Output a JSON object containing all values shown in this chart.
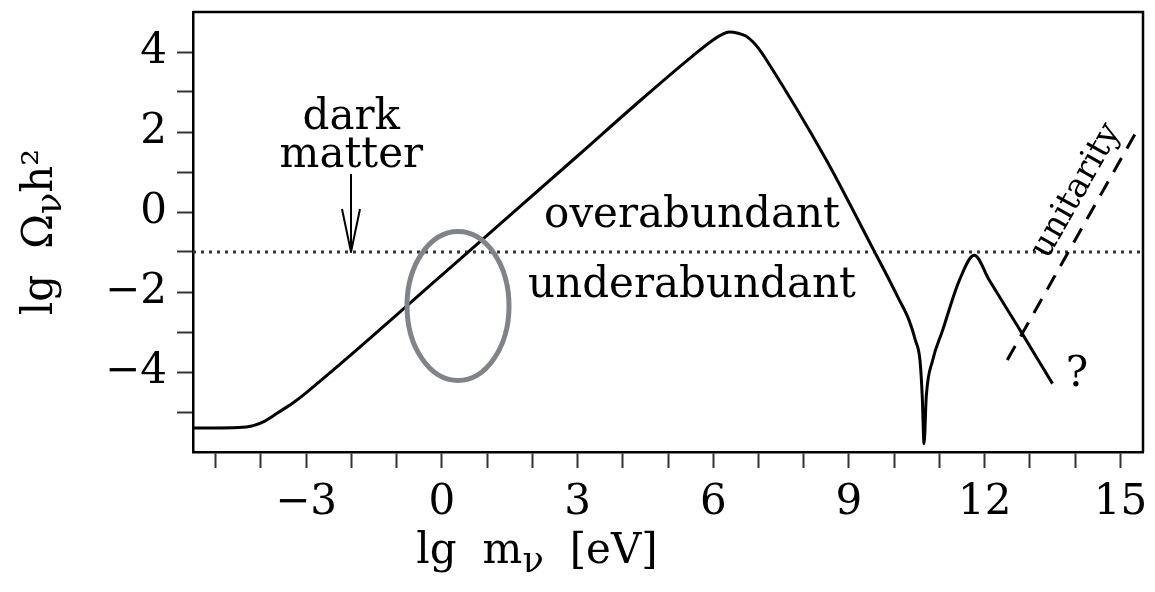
{
  "chart_data": {
    "type": "line",
    "xlabel": "lg m$_{ν}$ [eV]",
    "ylabel": "lg Ω$_{ν}$h²",
    "xlim": [
      -5.5,
      15.5
    ],
    "xticks": [
      {
        "value": -5,
        "label": null
      },
      {
        "value": -4,
        "label": null
      },
      -3,
      {
        "value": -2,
        "label": null
      },
      {
        "value": -1,
        "label": null
      },
      0,
      {
        "value": 1,
        "label": null
      },
      {
        "value": 2,
        "label": null
      },
      3,
      {
        "value": 4,
        "label": null
      },
      {
        "value": 5,
        "label": null
      },
      6,
      {
        "value": 7,
        "label": null
      },
      {
        "value": 8,
        "label": null
      },
      9,
      {
        "value": 10,
        "label": null
      },
      {
        "value": 11,
        "label": null
      },
      12,
      {
        "value": 13,
        "label": null
      },
      {
        "value": 14,
        "label": null
      },
      15
    ],
    "ylim": [
      -6,
      5
    ],
    "yticks": [
      {
        "value": -5,
        "label": null
      },
      -4,
      {
        "value": -3,
        "label": null
      },
      -2,
      {
        "value": -1,
        "label": null
      },
      0,
      {
        "value": 1,
        "label": null
      },
      2,
      {
        "value": 3,
        "label": null
      },
      4
    ],
    "series": [
      {
        "color": "#000000",
        "x": [
          -5.5,
          -5.0,
          -4.5,
          -4.2,
          -3.9,
          -3.6,
          -3.3,
          -3.0,
          0,
          3,
          4.4,
          5.5,
          5.98,
          6.2,
          6.35,
          6.55,
          6.72,
          6.88,
          7.01,
          7.16,
          8.5,
          9.55,
          9.8,
          10.1,
          10.33,
          10.47,
          10.57,
          10.62,
          10.66,
          10.71,
          10.85,
          11.07,
          11.44,
          11.77,
          12.1,
          12.83,
          13.5
        ],
        "values": [
          -5.4,
          -5.4,
          -5.39,
          -5.35,
          -5.22,
          -5.0,
          -4.78,
          -4.52,
          -1.58,
          1.4,
          2.8,
          3.86,
          4.29,
          4.44,
          4.5,
          4.47,
          4.4,
          4.25,
          4.08,
          3.83,
          1.3,
          -0.96,
          -1.5,
          -2.17,
          -2.71,
          -3.21,
          -3.71,
          -4.6,
          -5.79,
          -4.6,
          -3.71,
          -2.96,
          -1.71,
          -1.08,
          -1.7,
          -3.04,
          -4.29
        ]
      },
      {
        "name": "unitarity",
        "color": "#000000",
        "line_style": "dashed",
        "x": [
          12.5,
          15.4
        ],
        "values": [
          -3.7,
          2.1
        ]
      }
    ],
    "ref_lines": [
      {
        "axis": "y",
        "value": -1,
        "line_style": "dotted",
        "color": "#333333"
      }
    ],
    "annotations": [
      {
        "text": "dark\nmatter",
        "x": -2,
        "y": -1
      },
      "overabundant",
      "underabundant",
      "?"
    ]
  }
}
